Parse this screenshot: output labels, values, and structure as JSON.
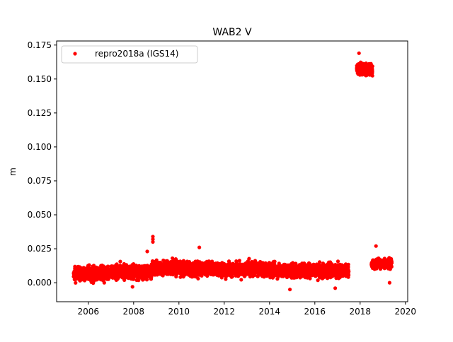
{
  "chart_data": {
    "type": "scatter",
    "title": "WAB2 V",
    "xlabel": "",
    "ylabel": "m",
    "xlim": [
      2004.6,
      2020.1
    ],
    "ylim": [
      -0.014,
      0.178
    ],
    "xticks": [
      2006,
      2008,
      2010,
      2012,
      2014,
      2016,
      2018,
      2020
    ],
    "yticks": [
      0.0,
      0.025,
      0.05,
      0.075,
      0.1,
      0.125,
      0.15,
      0.175
    ],
    "ytick_labels": [
      "0.000",
      "0.025",
      "0.050",
      "0.075",
      "0.100",
      "0.125",
      "0.150",
      "0.175"
    ],
    "grid": false,
    "legend_position": "upper-left",
    "series": [
      {
        "name": "repro2018a (IGS14)",
        "color": "#ff0000",
        "marker": "circle",
        "segments": [
          {
            "x_start": 2005.35,
            "x_end": 2007.0,
            "mean": 0.007,
            "spread": 0.006
          },
          {
            "x_start": 2007.0,
            "x_end": 2008.8,
            "mean": 0.008,
            "spread": 0.006
          },
          {
            "x_start": 2008.8,
            "x_end": 2010.0,
            "mean": 0.011,
            "spread": 0.006
          },
          {
            "x_start": 2010.0,
            "x_end": 2014.0,
            "mean": 0.01,
            "spread": 0.006
          },
          {
            "x_start": 2014.0,
            "x_end": 2017.5,
            "mean": 0.009,
            "spread": 0.006
          },
          {
            "x_start": 2017.85,
            "x_end": 2018.55,
            "mean": 0.157,
            "spread": 0.005
          },
          {
            "x_start": 2018.5,
            "x_end": 2019.4,
            "mean": 0.014,
            "spread": 0.004
          }
        ],
        "outliers": [
          {
            "x": 2008.85,
            "y": 0.034
          },
          {
            "x": 2008.85,
            "y": 0.032
          },
          {
            "x": 2008.85,
            "y": 0.03
          },
          {
            "x": 2008.6,
            "y": 0.023
          },
          {
            "x": 2010.9,
            "y": 0.026
          },
          {
            "x": 2017.95,
            "y": 0.169
          },
          {
            "x": 2018.7,
            "y": 0.027
          },
          {
            "x": 2014.9,
            "y": -0.005
          },
          {
            "x": 2016.9,
            "y": -0.004
          },
          {
            "x": 2007.95,
            "y": -0.003
          },
          {
            "x": 2019.3,
            "y": 0.0
          }
        ]
      }
    ]
  }
}
